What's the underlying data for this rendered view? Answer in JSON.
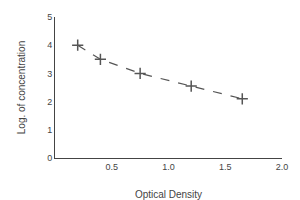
{
  "chart_data": {
    "type": "line",
    "x": [
      0.2,
      0.4,
      0.75,
      1.2,
      1.65
    ],
    "values": [
      4.0,
      3.5,
      3.0,
      2.55,
      2.1
    ],
    "xlabel": "Optical Density",
    "ylabel": "Log. of concentration",
    "xlim": [
      0,
      2
    ],
    "ylim": [
      0,
      5
    ],
    "xticks": [
      0.5,
      {
        "value": 1.0,
        "label": "1.0"
      },
      1.5,
      {
        "value": 2.0,
        "label": "2.0"
      }
    ],
    "yticks": [
      0,
      1,
      2,
      3,
      4,
      5
    ],
    "color": "#555555",
    "line_style": "dashed",
    "marker": "plus",
    "grid": false
  }
}
